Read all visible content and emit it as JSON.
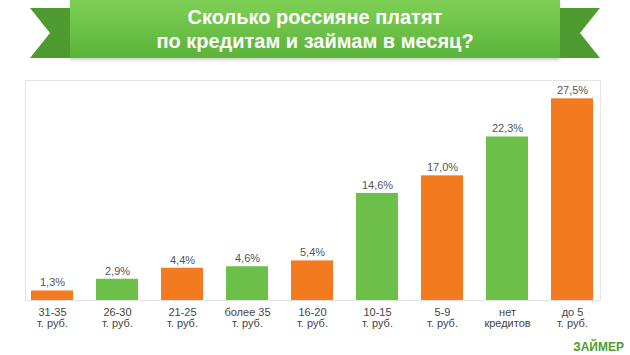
{
  "chart_data": {
    "type": "bar",
    "title": "Сколько россияне платят\nпо кредитам и займам в месяц?",
    "annotations": [
      "ЗАЙМЕР"
    ],
    "categories": [
      "31-35\nт. руб.",
      "26-30\nт. руб.",
      "21-25\nт. руб.",
      "более 35\nт. руб.",
      "16-20\nт. руб.",
      "10-15\nт. руб.",
      "5-9\nт. руб.",
      "нет\nкредитов",
      "до 5\nт. руб."
    ],
    "values": [
      1.3,
      2.9,
      4.4,
      4.6,
      5.4,
      14.6,
      17.0,
      22.3,
      27.5
    ],
    "value_labels": [
      "1,3%",
      "2,9%",
      "4,4%",
      "4,6%",
      "5,4%",
      "14,6%",
      "17,0%",
      "22,3%",
      "27,5%"
    ],
    "colors": [
      "#f47a20",
      "#6cc04a",
      "#f47a20",
      "#6cc04a",
      "#f47a20",
      "#6cc04a",
      "#f47a20",
      "#6cc04a",
      "#f47a20"
    ],
    "ylim": [
      0,
      30
    ],
    "data_labels": true,
    "tick_labels": "x"
  }
}
